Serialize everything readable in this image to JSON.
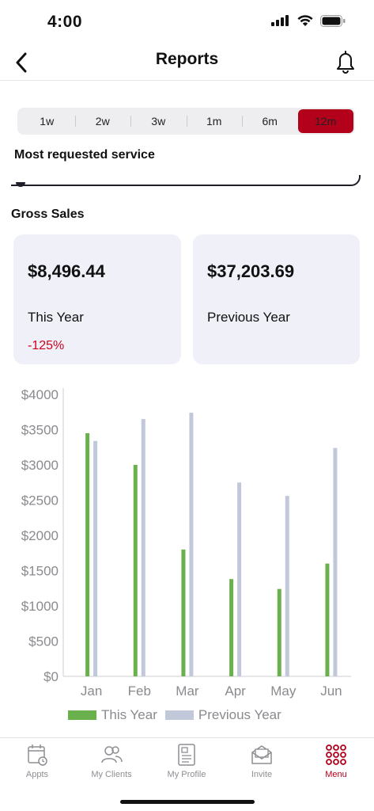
{
  "status": {
    "time": "4:00"
  },
  "nav": {
    "title": "Reports"
  },
  "range": {
    "options": [
      "1w",
      "2w",
      "3w",
      "1m",
      "6m",
      "12m"
    ],
    "selected": "12m"
  },
  "most_requested": {
    "title": "Most requested service"
  },
  "gross_sales": {
    "title": "Gross Sales",
    "this_year": {
      "amount": "$8,496.44",
      "label": "This Year",
      "change": "-125%"
    },
    "previous_year": {
      "amount": "$37,203.69",
      "label": "Previous Year"
    }
  },
  "chart_data": {
    "type": "bar",
    "categories": [
      "Jan",
      "Feb",
      "Mar",
      "Apr",
      "May",
      "Jun"
    ],
    "series": [
      {
        "name": "This Year",
        "color": "#6ab04c",
        "values": [
          3450,
          3000,
          1800,
          1380,
          1240,
          1600
        ]
      },
      {
        "name": "Previous Year",
        "color": "#c0c8da",
        "values": [
          3340,
          3650,
          3740,
          2750,
          2560,
          3240
        ]
      }
    ],
    "yticks": [
      "$0",
      "$500",
      "$1000",
      "$1500",
      "$2000",
      "$2500",
      "$3000",
      "$3500",
      "$4000"
    ],
    "ylim": [
      0,
      4000
    ],
    "legend_position": "bottom-center",
    "grid": false
  },
  "tabs": [
    {
      "label": "Appts",
      "icon": "calendar-icon"
    },
    {
      "label": "My Clients",
      "icon": "users-icon"
    },
    {
      "label": "My Profile",
      "icon": "profile-card-icon"
    },
    {
      "label": "Invite",
      "icon": "envelope-icon"
    },
    {
      "label": "Menu",
      "icon": "menu-grid-icon"
    }
  ],
  "active_tab": "Menu",
  "colors": {
    "accent": "#b3001b",
    "negative": "#d0021b",
    "card_bg": "#eff0f8"
  }
}
